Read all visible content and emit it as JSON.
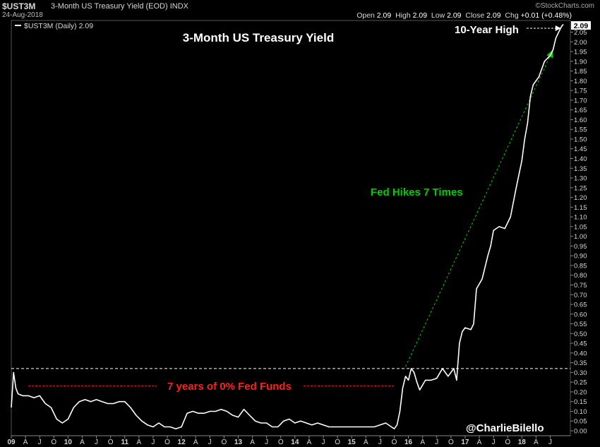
{
  "header": {
    "symbol": "$UST3M",
    "description": "3-Month US Treasury Yield (EOD)",
    "exchange": "INDX",
    "date": "24-Aug-2018",
    "brand": "©StockCharts.com",
    "ohlc": {
      "open_label": "Open",
      "open": "2.09",
      "high_label": "High",
      "high": "2.09",
      "low_label": "Low",
      "low": "2.09",
      "close_label": "Close",
      "close": "2.09",
      "chg_label": "Chg",
      "chg": "+0.01 (+0.48%)"
    }
  },
  "legend": {
    "text": "$UST3M (Daily) 2.09"
  },
  "last_value_badge": "2.09",
  "watermark": "@CharlieBilello",
  "colors": {
    "background": "#000000",
    "line": "#ffffff",
    "green": "#00cc00",
    "red": "#ff2020",
    "grid_text": "#d8d8d8"
  },
  "chart_data": {
    "type": "line",
    "title": "3-Month US Treasury Yield",
    "series": [
      {
        "name": "$UST3M (Daily)",
        "points": [
          [
            2009.0,
            0.12
          ],
          [
            2009.04,
            0.3
          ],
          [
            2009.08,
            0.22
          ],
          [
            2009.12,
            0.19
          ],
          [
            2009.2,
            0.18
          ],
          [
            2009.3,
            0.18
          ],
          [
            2009.4,
            0.17
          ],
          [
            2009.5,
            0.18
          ],
          [
            2009.6,
            0.14
          ],
          [
            2009.7,
            0.12
          ],
          [
            2009.8,
            0.06
          ],
          [
            2009.9,
            0.04
          ],
          [
            2010.0,
            0.06
          ],
          [
            2010.1,
            0.12
          ],
          [
            2010.2,
            0.15
          ],
          [
            2010.3,
            0.16
          ],
          [
            2010.4,
            0.15
          ],
          [
            2010.5,
            0.16
          ],
          [
            2010.6,
            0.15
          ],
          [
            2010.7,
            0.14
          ],
          [
            2010.8,
            0.14
          ],
          [
            2010.9,
            0.15
          ],
          [
            2011.0,
            0.15
          ],
          [
            2011.1,
            0.12
          ],
          [
            2011.2,
            0.08
          ],
          [
            2011.3,
            0.05
          ],
          [
            2011.4,
            0.03
          ],
          [
            2011.5,
            0.02
          ],
          [
            2011.6,
            0.04
          ],
          [
            2011.7,
            0.02
          ],
          [
            2011.8,
            0.02
          ],
          [
            2011.9,
            0.01
          ],
          [
            2012.0,
            0.02
          ],
          [
            2012.1,
            0.09
          ],
          [
            2012.2,
            0.1
          ],
          [
            2012.3,
            0.09
          ],
          [
            2012.4,
            0.09
          ],
          [
            2012.5,
            0.1
          ],
          [
            2012.6,
            0.1
          ],
          [
            2012.7,
            0.11
          ],
          [
            2012.8,
            0.1
          ],
          [
            2012.9,
            0.08
          ],
          [
            2013.0,
            0.07
          ],
          [
            2013.1,
            0.11
          ],
          [
            2013.2,
            0.08
          ],
          [
            2013.3,
            0.05
          ],
          [
            2013.4,
            0.04
          ],
          [
            2013.5,
            0.04
          ],
          [
            2013.6,
            0.02
          ],
          [
            2013.7,
            0.02
          ],
          [
            2013.8,
            0.05
          ],
          [
            2013.9,
            0.06
          ],
          [
            2014.0,
            0.04
          ],
          [
            2014.1,
            0.05
          ],
          [
            2014.2,
            0.04
          ],
          [
            2014.3,
            0.03
          ],
          [
            2014.4,
            0.04
          ],
          [
            2014.5,
            0.03
          ],
          [
            2014.6,
            0.02
          ],
          [
            2014.7,
            0.02
          ],
          [
            2014.8,
            0.02
          ],
          [
            2014.9,
            0.02
          ],
          [
            2015.0,
            0.02
          ],
          [
            2015.1,
            0.02
          ],
          [
            2015.2,
            0.02
          ],
          [
            2015.3,
            0.02
          ],
          [
            2015.4,
            0.02
          ],
          [
            2015.5,
            0.03
          ],
          [
            2015.6,
            0.04
          ],
          [
            2015.7,
            0.02
          ],
          [
            2015.75,
            0.01
          ],
          [
            2015.8,
            0.03
          ],
          [
            2015.85,
            0.1
          ],
          [
            2015.9,
            0.22
          ],
          [
            2015.95,
            0.28
          ],
          [
            2016.0,
            0.26
          ],
          [
            2016.05,
            0.32
          ],
          [
            2016.1,
            0.3
          ],
          [
            2016.15,
            0.25
          ],
          [
            2016.2,
            0.21
          ],
          [
            2016.3,
            0.26
          ],
          [
            2016.4,
            0.26
          ],
          [
            2016.5,
            0.27
          ],
          [
            2016.6,
            0.32
          ],
          [
            2016.7,
            0.28
          ],
          [
            2016.8,
            0.32
          ],
          [
            2016.85,
            0.26
          ],
          [
            2016.9,
            0.45
          ],
          [
            2016.95,
            0.51
          ],
          [
            2017.0,
            0.53
          ],
          [
            2017.1,
            0.52
          ],
          [
            2017.15,
            0.55
          ],
          [
            2017.2,
            0.73
          ],
          [
            2017.3,
            0.78
          ],
          [
            2017.4,
            0.9
          ],
          [
            2017.45,
            0.95
          ],
          [
            2017.5,
            1.03
          ],
          [
            2017.6,
            1.05
          ],
          [
            2017.7,
            1.04
          ],
          [
            2017.8,
            1.1
          ],
          [
            2017.9,
            1.25
          ],
          [
            2018.0,
            1.39
          ],
          [
            2018.05,
            1.5
          ],
          [
            2018.1,
            1.58
          ],
          [
            2018.15,
            1.72
          ],
          [
            2018.2,
            1.78
          ],
          [
            2018.3,
            1.82
          ],
          [
            2018.35,
            1.86
          ],
          [
            2018.4,
            1.9
          ],
          [
            2018.5,
            1.93
          ],
          [
            2018.55,
            1.96
          ],
          [
            2018.6,
            2.02
          ],
          [
            2018.65,
            2.05
          ],
          [
            2018.7,
            2.08
          ],
          [
            2018.73,
            2.09
          ]
        ]
      }
    ],
    "ylim": [
      0,
      2.11
    ],
    "y_ticks": [
      "0.00",
      "0.05",
      "0.10",
      "0.15",
      "0.20",
      "0.25",
      "0.30",
      "0.35",
      "0.40",
      "0.45",
      "0.50",
      "0.55",
      "0.60",
      "0.65",
      "0.70",
      "0.75",
      "0.80",
      "0.85",
      "0.90",
      "0.95",
      "1.00",
      "1.05",
      "1.10",
      "1.15",
      "1.20",
      "1.25",
      "1.30",
      "1.35",
      "1.40",
      "1.45",
      "1.50",
      "1.55",
      "1.60",
      "1.65",
      "1.70",
      "1.75",
      "1.80",
      "1.85",
      "1.90",
      "1.95",
      "2.00",
      "2.05"
    ],
    "xlim": [
      2009.0,
      2018.83
    ],
    "x_ticks": [
      {
        "x": 2009.0,
        "label": "09",
        "year": true
      },
      {
        "x": 2009.25,
        "label": "A"
      },
      {
        "x": 2009.5,
        "label": "J"
      },
      {
        "x": 2009.75,
        "label": "O"
      },
      {
        "x": 2010.0,
        "label": "10",
        "year": true
      },
      {
        "x": 2010.25,
        "label": "A"
      },
      {
        "x": 2010.5,
        "label": "J"
      },
      {
        "x": 2010.75,
        "label": "O"
      },
      {
        "x": 2011.0,
        "label": "11",
        "year": true
      },
      {
        "x": 2011.25,
        "label": "A"
      },
      {
        "x": 2011.5,
        "label": "J"
      },
      {
        "x": 2011.75,
        "label": "O"
      },
      {
        "x": 2012.0,
        "label": "12",
        "year": true
      },
      {
        "x": 2012.25,
        "label": "A"
      },
      {
        "x": 2012.5,
        "label": "J"
      },
      {
        "x": 2012.75,
        "label": "O"
      },
      {
        "x": 2013.0,
        "label": "13",
        "year": true
      },
      {
        "x": 2013.25,
        "label": "A"
      },
      {
        "x": 2013.5,
        "label": "J"
      },
      {
        "x": 2013.75,
        "label": "O"
      },
      {
        "x": 2014.0,
        "label": "14",
        "year": true
      },
      {
        "x": 2014.25,
        "label": "A"
      },
      {
        "x": 2014.5,
        "label": "J"
      },
      {
        "x": 2014.75,
        "label": "O"
      },
      {
        "x": 2015.0,
        "label": "15",
        "year": true
      },
      {
        "x": 2015.25,
        "label": "A"
      },
      {
        "x": 2015.5,
        "label": "J"
      },
      {
        "x": 2015.75,
        "label": "O"
      },
      {
        "x": 2016.0,
        "label": "16",
        "year": true
      },
      {
        "x": 2016.25,
        "label": "A"
      },
      {
        "x": 2016.5,
        "label": "J"
      },
      {
        "x": 2016.75,
        "label": "O"
      },
      {
        "x": 2017.0,
        "label": "17",
        "year": true
      },
      {
        "x": 2017.25,
        "label": "A"
      },
      {
        "x": 2017.5,
        "label": "J"
      },
      {
        "x": 2017.75,
        "label": "O"
      },
      {
        "x": 2018.0,
        "label": "18",
        "year": true
      },
      {
        "x": 2018.25,
        "label": "A"
      },
      {
        "x": 2018.5,
        "label": "J"
      }
    ],
    "grid": false,
    "legend_position": "top-left",
    "annotations": [
      {
        "id": "high",
        "text": "10-Year High",
        "color": "#ffffff"
      },
      {
        "id": "hikes",
        "text": "Fed Hikes 7 Times",
        "color": "#00cc00"
      },
      {
        "id": "zero",
        "text": "7 years of 0% Fed Funds",
        "color": "#ff2020"
      }
    ],
    "reference_lines": [
      {
        "id": "prior_high",
        "y": 0.32,
        "color": "#ffffff",
        "style": "dashed"
      }
    ],
    "hike_arrow": {
      "from": [
        2015.95,
        0.33
      ],
      "to": [
        2018.55,
        1.96
      ]
    },
    "zero_rate_line": {
      "y": 0.23,
      "x1": 2009.3,
      "x2": 2015.75
    },
    "high_arrow": {
      "y": 2.07,
      "x_to": 2018.74
    }
  }
}
